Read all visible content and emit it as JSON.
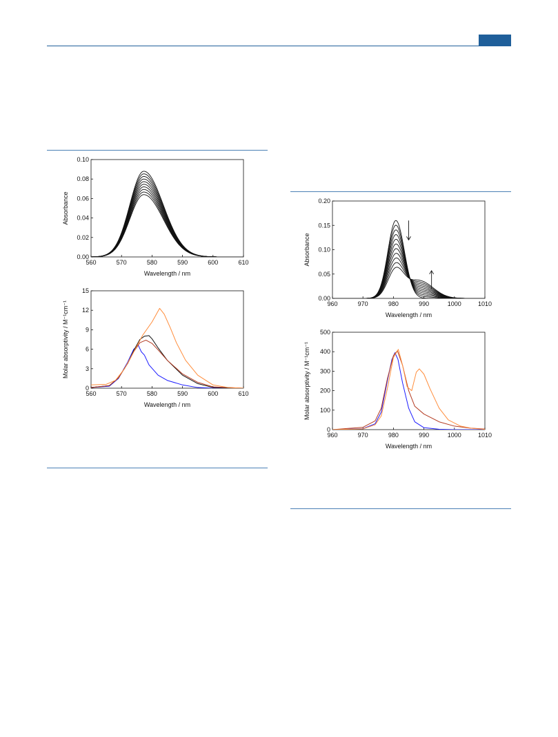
{
  "chart_data": [
    {
      "id": "left-top",
      "type": "line",
      "xlabel": "Wavelength / nm",
      "ylabel": "Absorbance",
      "xlim": [
        560,
        610
      ],
      "ylim": [
        0.0,
        0.1
      ],
      "xticks": [
        "560",
        "570",
        "580",
        "590",
        "600",
        "610"
      ],
      "yticks": [
        "0.00",
        "0.02",
        "0.04",
        "0.06",
        "0.08",
        "0.10"
      ],
      "family": {
        "count": 10,
        "center": 577.3,
        "sigma_left": 4.6,
        "sigma_right": 6.4,
        "heights_first": 0.088,
        "heights_last": 0.064,
        "color": "#111111"
      }
    },
    {
      "id": "left-bottom",
      "type": "line",
      "xlabel": "Wavelength / nm",
      "ylabel": "Molar absorptivity / M⁻¹cm⁻¹",
      "xlim": [
        560,
        610
      ],
      "ylim": [
        0,
        15
      ],
      "xticks": [
        "560",
        "570",
        "580",
        "590",
        "600",
        "610"
      ],
      "yticks": [
        "0",
        "3",
        "6",
        "9",
        "12",
        "15"
      ],
      "series": [
        {
          "color": "#1a1aff",
          "points": [
            [
              560,
              0.1
            ],
            [
              566,
              0.3
            ],
            [
              569,
              1.5
            ],
            [
              572,
              4.0
            ],
            [
              574,
              6.0
            ],
            [
              575.5,
              6.6
            ],
            [
              576.5,
              5.6
            ],
            [
              577.5,
              5.1
            ],
            [
              579,
              3.6
            ],
            [
              582,
              2.0
            ],
            [
              585,
              1.2
            ],
            [
              590,
              0.5
            ],
            [
              595,
              0.1
            ],
            [
              600,
              0.0
            ],
            [
              610,
              0.0
            ]
          ]
        },
        {
          "color": "#111111",
          "points": [
            [
              560,
              0.1
            ],
            [
              566,
              0.4
            ],
            [
              569,
              1.6
            ],
            [
              572,
              3.8
            ],
            [
              574,
              5.8
            ],
            [
              576,
              7.5
            ],
            [
              577.5,
              8.0
            ],
            [
              579,
              8.1
            ],
            [
              580,
              7.6
            ],
            [
              582,
              6.2
            ],
            [
              585,
              4.3
            ],
            [
              590,
              2.0
            ],
            [
              595,
              0.7
            ],
            [
              600,
              0.1
            ],
            [
              610,
              0.0
            ]
          ]
        },
        {
          "color": "#b33a20",
          "points": [
            [
              560,
              0.1
            ],
            [
              566,
              0.4
            ],
            [
              569,
              1.6
            ],
            [
              572,
              3.8
            ],
            [
              574,
              5.6
            ],
            [
              576,
              7.0
            ],
            [
              578,
              7.4
            ],
            [
              580,
              6.9
            ],
            [
              582,
              5.9
            ],
            [
              585,
              4.3
            ],
            [
              590,
              2.2
            ],
            [
              595,
              0.9
            ],
            [
              600,
              0.2
            ],
            [
              610,
              0.0
            ]
          ]
        },
        {
          "color": "#ff8c3a",
          "points": [
            [
              560,
              0.5
            ],
            [
              565,
              0.6
            ],
            [
              568,
              1.2
            ],
            [
              571,
              3.0
            ],
            [
              574,
              5.6
            ],
            [
              577,
              8.2
            ],
            [
              580,
              10.2
            ],
            [
              582.5,
              12.3
            ],
            [
              584,
              11.4
            ],
            [
              586,
              9.3
            ],
            [
              588,
              7.0
            ],
            [
              591,
              4.3
            ],
            [
              595,
              2.0
            ],
            [
              600,
              0.5
            ],
            [
              605,
              0.1
            ],
            [
              610,
              0.0
            ]
          ]
        }
      ]
    },
    {
      "id": "right-top",
      "type": "line",
      "xlabel": "Wavelength / nm",
      "ylabel": "Absorbance",
      "xlim": [
        960,
        1010
      ],
      "ylim": [
        0.0,
        0.2
      ],
      "xticks": [
        "960",
        "970",
        "980",
        "990",
        "1000",
        "1010"
      ],
      "yticks": [
        "0.00",
        "0.05",
        "0.10",
        "0.15",
        "0.20"
      ],
      "family": {
        "count": 11,
        "center": 980.8,
        "sigma_left": 2.6,
        "sigma_right": 2.8,
        "heights_first": 0.16,
        "heights_last": 0.06,
        "second_center": 988.5,
        "second_sigma": 3.6,
        "second_first": 0.0,
        "second_last": 0.036,
        "color": "#111111"
      },
      "arrows": [
        {
          "direction": "down",
          "x": 985,
          "y_from": 0.16,
          "y_to": 0.12
        },
        {
          "direction": "up",
          "x": 992.5,
          "y_from": 0.02,
          "y_to": 0.057
        }
      ]
    },
    {
      "id": "right-bottom",
      "type": "line",
      "xlabel": "Wavelength / nm",
      "ylabel": "Molar absorptivity / M⁻¹cm⁻¹",
      "xlim": [
        960,
        1010
      ],
      "ylim": [
        0,
        500
      ],
      "xticks": [
        "960",
        "970",
        "980",
        "990",
        "1000",
        "1010"
      ],
      "yticks": [
        "0",
        "100",
        "200",
        "300",
        "400",
        "500"
      ],
      "series": [
        {
          "color": "#1a1aff",
          "points": [
            [
              960,
              0
            ],
            [
              970,
              5
            ],
            [
              974,
              30
            ],
            [
              976,
              90
            ],
            [
              978,
              250
            ],
            [
              979.5,
              360
            ],
            [
              980.5,
              395
            ],
            [
              981.5,
              360
            ],
            [
              983,
              240
            ],
            [
              985,
              110
            ],
            [
              987,
              40
            ],
            [
              990,
              10
            ],
            [
              995,
              2
            ],
            [
              1000,
              0
            ],
            [
              1010,
              0
            ]
          ]
        },
        {
          "color": "#b33a20",
          "points": [
            [
              960,
              0
            ],
            [
              970,
              12
            ],
            [
              974,
              45
            ],
            [
              976,
              110
            ],
            [
              978,
              260
            ],
            [
              980,
              380
            ],
            [
              981.3,
              405
            ],
            [
              983,
              330
            ],
            [
              985,
              200
            ],
            [
              987,
              120
            ],
            [
              990,
              80
            ],
            [
              995,
              40
            ],
            [
              1000,
              18
            ],
            [
              1005,
              8
            ],
            [
              1010,
              3
            ]
          ]
        },
        {
          "color": "#ff8c3a",
          "points": [
            [
              960,
              0
            ],
            [
              970,
              4
            ],
            [
              974,
              25
            ],
            [
              976,
              70
            ],
            [
              978,
              210
            ],
            [
              980,
              370
            ],
            [
              981.6,
              412
            ],
            [
              983,
              330
            ],
            [
              984.5,
              220
            ],
            [
              986,
              200
            ],
            [
              987.5,
              295
            ],
            [
              988.5,
              312
            ],
            [
              990,
              285
            ],
            [
              992,
              210
            ],
            [
              995,
              110
            ],
            [
              998,
              50
            ],
            [
              1002,
              18
            ],
            [
              1006,
              6
            ],
            [
              1010,
              2
            ]
          ]
        }
      ]
    }
  ]
}
